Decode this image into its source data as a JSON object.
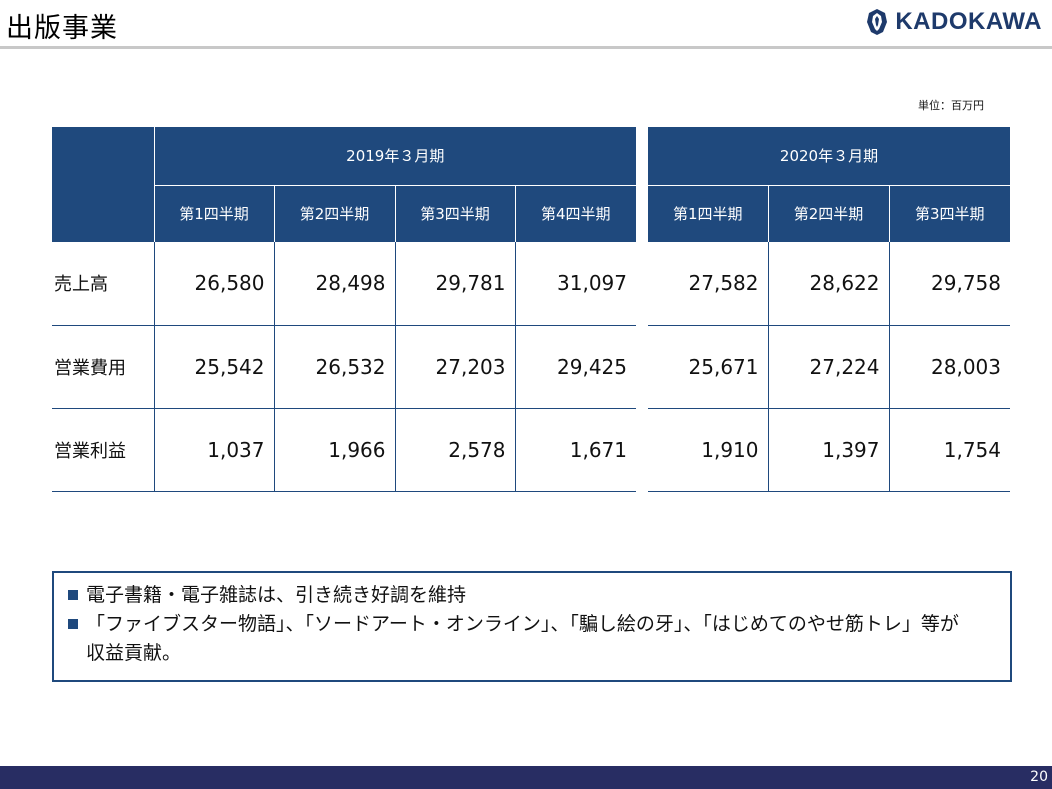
{
  "header": {
    "title": "出版事業",
    "logo_text": "KADOKAWA"
  },
  "unit": "単位：百万円",
  "table": {
    "fy2019_label": "2019年３月期",
    "fy2020_label": "2020年３月期",
    "quarters_2019": [
      "第1四半期",
      "第2四半期",
      "第3四半期",
      "第4四半期"
    ],
    "quarters_2020": [
      "第1四半期",
      "第2四半期",
      "第3四半期"
    ],
    "rows": [
      {
        "label": "売上高",
        "values_2019": [
          "26,580",
          "28,498",
          "29,781",
          "31,097"
        ],
        "values_2020": [
          "27,582",
          "28,622",
          "29,758"
        ]
      },
      {
        "label": "営業費用",
        "values_2019": [
          "25,542",
          "26,532",
          "27,203",
          "29,425"
        ],
        "values_2020": [
          "25,671",
          "27,224",
          "28,003"
        ]
      },
      {
        "label": "営業利益",
        "values_2019": [
          "1,037",
          "1,966",
          "2,578",
          "1,671"
        ],
        "values_2020": [
          "1,910",
          "1,397",
          "1,754"
        ]
      }
    ]
  },
  "notes": [
    "電子書籍・電子雑誌は、引き続き好調を維持",
    "「ファイブスター物語」、「ソードアート・オンライン」、「騙し絵の牙」、「はじめてのやせ筋トレ」等が",
    "収益貢献。"
  ],
  "footer": {
    "page_number": "20"
  },
  "colors": {
    "header_blue": "#1f497d",
    "footer_navy": "#282d63"
  },
  "icons": {
    "logo_icon": "kadokawa-dragon-emblem-icon"
  }
}
